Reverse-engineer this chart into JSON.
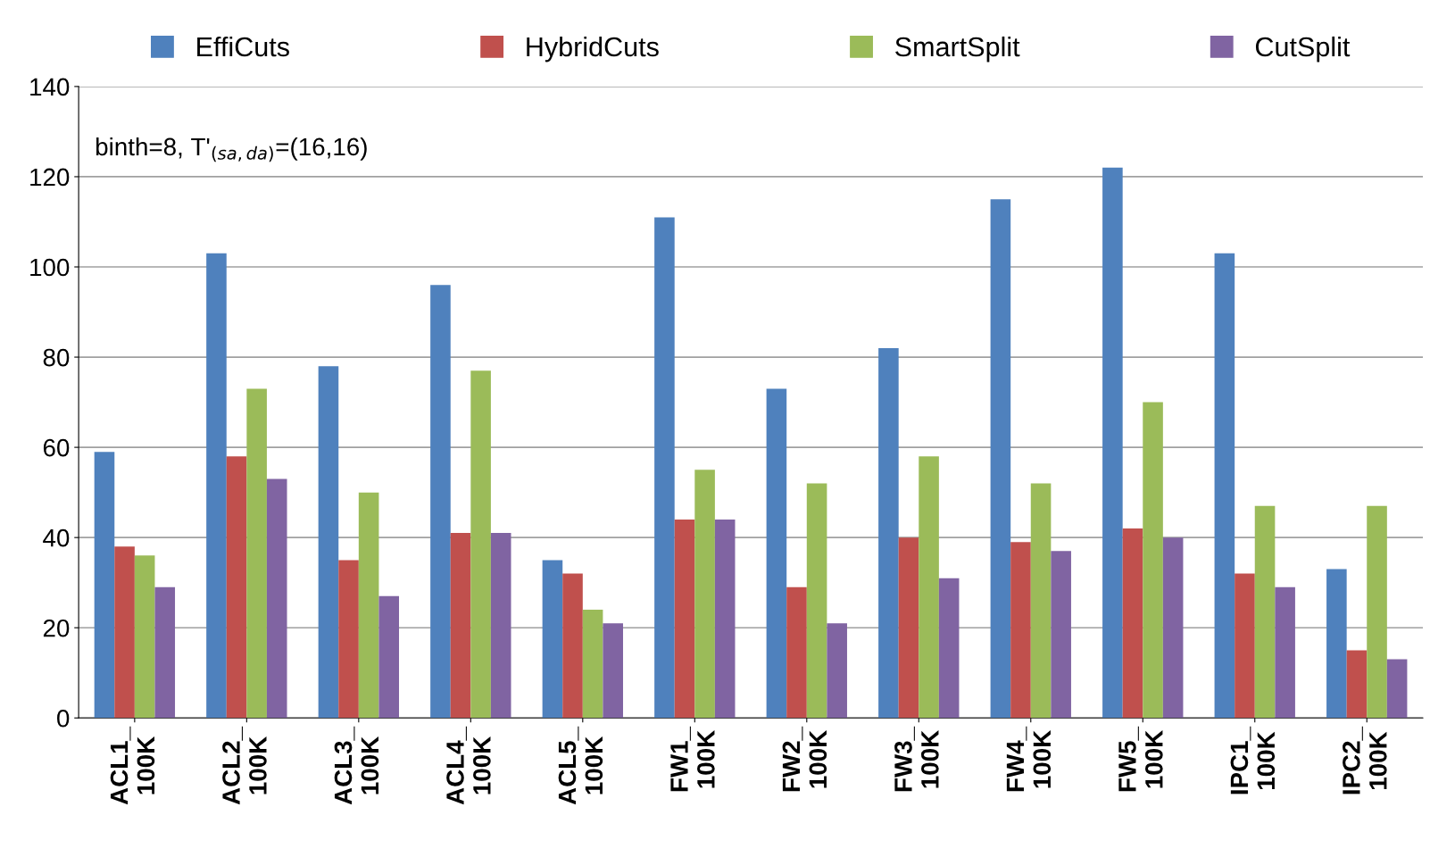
{
  "chart_data": {
    "type": "bar",
    "categories": [
      "ACL1_\n100K",
      "ACL2_\n100K",
      "ACL3_\n100K",
      "ACL4_\n100K",
      "ACL5_\n100K",
      "FW1_\n100K",
      "FW2_\n100K",
      "FW3_\n100K",
      "FW4_\n100K",
      "FW5_\n100K",
      "IPC1_\n100K",
      "IPC2_\n100K"
    ],
    "series": [
      {
        "name": "EffiCuts",
        "color": "#4f81bd",
        "values": [
          59,
          103,
          78,
          96,
          35,
          111,
          73,
          82,
          115,
          122,
          103,
          33
        ]
      },
      {
        "name": "HybridCuts",
        "color": "#c0504d",
        "values": [
          38,
          58,
          35,
          41,
          32,
          44,
          29,
          40,
          39,
          42,
          32,
          15
        ]
      },
      {
        "name": "SmartSplit",
        "color": "#9bbb59",
        "values": [
          36,
          73,
          50,
          77,
          24,
          55,
          52,
          58,
          52,
          70,
          47,
          47
        ]
      },
      {
        "name": "CutSplit",
        "color": "#8064a2",
        "values": [
          29,
          53,
          27,
          41,
          21,
          44,
          21,
          31,
          37,
          40,
          29,
          13
        ]
      }
    ],
    "ylim": [
      0,
      140
    ],
    "yticks": [
      0,
      20,
      40,
      60,
      80,
      100,
      120,
      140
    ],
    "grid": "y",
    "legend": "top",
    "annotations": [
      "binth=8, T'$_{(sa,da)}$=(16,16)"
    ]
  }
}
